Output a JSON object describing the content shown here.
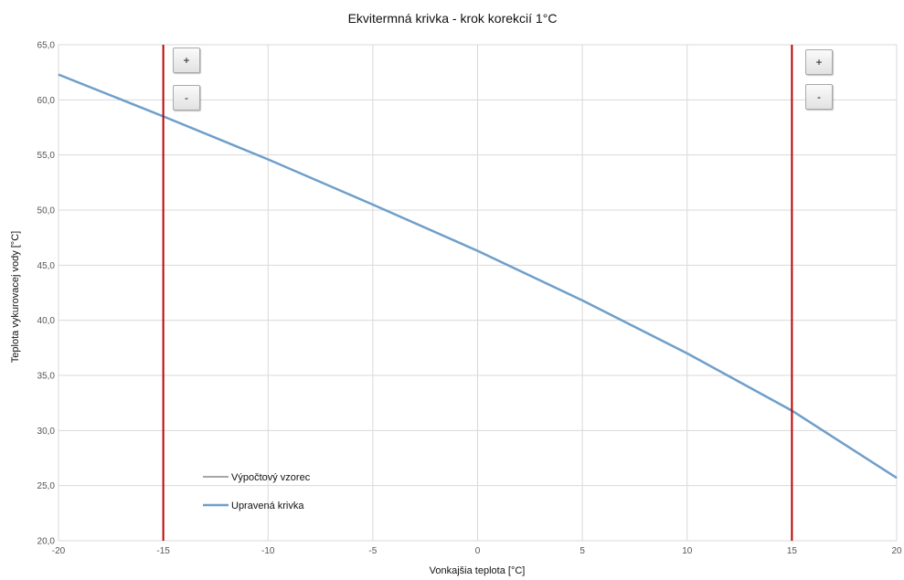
{
  "chart_data": {
    "type": "line",
    "title": "Ekvitermná krivka - krok korekcií 1°C",
    "xlabel": "Vonkajšia teplota [°C]",
    "ylabel": "Teplota vykurovacej vody [°C]",
    "xlim": [
      -20,
      20
    ],
    "ylim": [
      20,
      65
    ],
    "x_ticks": [
      "-20",
      "-15",
      "-10",
      "-5",
      "0",
      "5",
      "10",
      "15",
      "20"
    ],
    "y_ticks": [
      "20,0",
      "25,0",
      "30,0",
      "35,0",
      "40,0",
      "45,0",
      "50,0",
      "55,0",
      "60,0",
      "65,0"
    ],
    "grid": true,
    "x": [
      -20,
      -15,
      -10,
      -5,
      0,
      5,
      10,
      15,
      20
    ],
    "series": [
      {
        "name": "Výpočtový vzorec",
        "color": "#a6a6a6",
        "values": [
          62.3,
          58.5,
          54.6,
          50.5,
          46.3,
          41.8,
          37.0,
          31.8,
          25.7
        ]
      },
      {
        "name": "Upravená krivka",
        "color": "#6f9fca",
        "values": [
          62.3,
          58.5,
          54.6,
          50.5,
          46.3,
          41.8,
          37.0,
          31.8,
          25.7
        ]
      }
    ],
    "markers": [
      {
        "x": -15,
        "color": "#c00000"
      },
      {
        "x": 15,
        "color": "#c00000"
      }
    ],
    "legend_position": "bottom-left"
  },
  "controls": {
    "left_plus": "+",
    "left_minus": "-",
    "right_plus": "+",
    "right_minus": "-"
  }
}
